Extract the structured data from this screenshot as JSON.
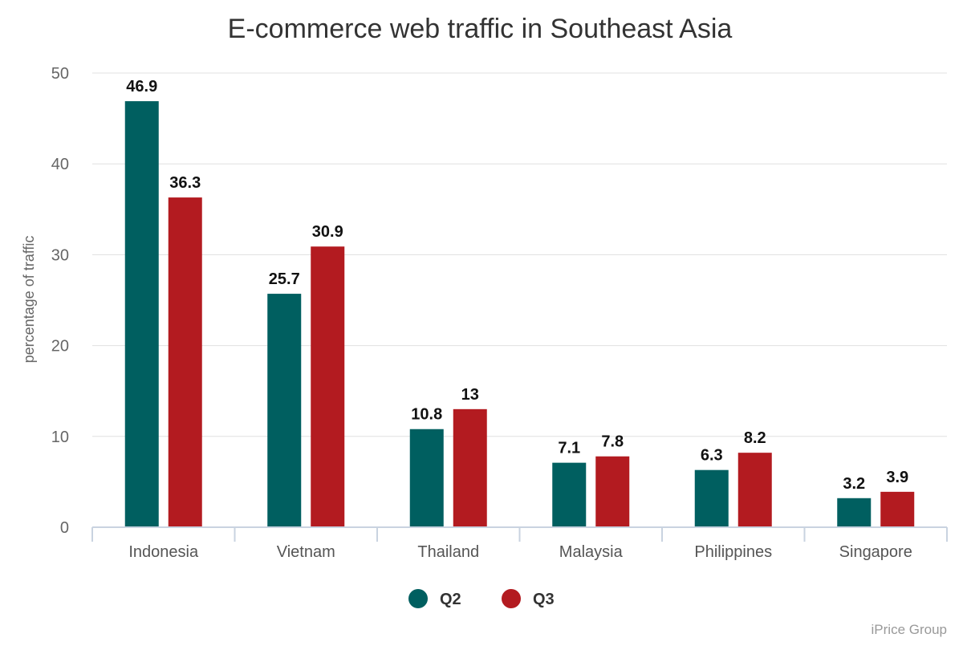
{
  "colors": {
    "q2": "#005f60",
    "q3": "#b31b20"
  },
  "chart_data": {
    "type": "bar",
    "title": "E-commerce web traffic in Southeast Asia",
    "ylabel": "percentage of traffic",
    "xlabel": "",
    "ylim": [
      0,
      50
    ],
    "yticks": [
      0,
      10,
      20,
      30,
      40,
      50
    ],
    "grid": true,
    "legend_position": "bottom-center",
    "categories": [
      "Indonesia",
      "Vietnam",
      "Thailand",
      "Malaysia",
      "Philippines",
      "Singapore"
    ],
    "series": [
      {
        "name": "Q2",
        "color": "#005f60",
        "values": [
          46.9,
          25.7,
          10.8,
          7.1,
          6.3,
          3.2
        ]
      },
      {
        "name": "Q3",
        "color": "#b31b20",
        "values": [
          36.3,
          30.9,
          13,
          7.8,
          8.2,
          3.9
        ]
      }
    ],
    "source": "iPrice Group"
  }
}
